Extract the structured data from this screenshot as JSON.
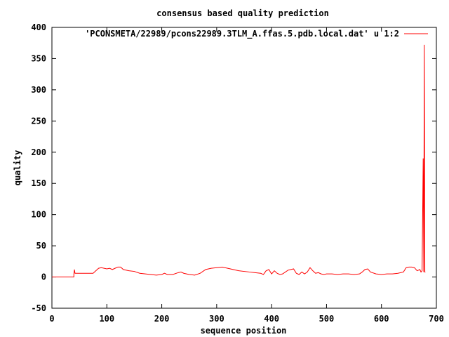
{
  "chart_data": {
    "type": "line",
    "title": "consensus based quality prediction",
    "xlabel": "sequence position",
    "ylabel": "quality",
    "xlim": [
      0,
      700
    ],
    "ylim": [
      -50,
      400
    ],
    "xticks": [
      0,
      100,
      200,
      300,
      400,
      500,
      600,
      700
    ],
    "yticks": [
      -50,
      0,
      50,
      100,
      150,
      200,
      250,
      300,
      350,
      400
    ],
    "grid": false,
    "legend_position": "top-right",
    "series": [
      {
        "name": "'PCONSMETA/22989/pcons22989.3TLM_A.ffas.5.pdb.local.dat' u 1:2",
        "color": "#ff0000",
        "x": [
          0,
          40,
          40,
          41,
          42,
          45,
          60,
          75,
          80,
          85,
          90,
          95,
          100,
          105,
          110,
          115,
          120,
          125,
          130,
          140,
          150,
          160,
          170,
          180,
          190,
          200,
          205,
          210,
          220,
          230,
          235,
          240,
          250,
          260,
          270,
          280,
          290,
          300,
          310,
          320,
          330,
          340,
          350,
          360,
          370,
          380,
          385,
          390,
          395,
          400,
          405,
          410,
          415,
          420,
          430,
          440,
          445,
          450,
          455,
          460,
          465,
          470,
          475,
          480,
          485,
          490,
          495,
          500,
          510,
          520,
          530,
          540,
          550,
          560,
          565,
          570,
          575,
          580,
          590,
          600,
          610,
          620,
          630,
          640,
          645,
          650,
          655,
          660,
          665,
          670,
          672,
          674,
          676,
          677,
          678,
          679,
          680
        ],
        "y": [
          0,
          0,
          5,
          12,
          6,
          6,
          6,
          6,
          10,
          14,
          15,
          14,
          13,
          14,
          12,
          14,
          16,
          16,
          12,
          10,
          9,
          6,
          5,
          4,
          3,
          4,
          6,
          4,
          4,
          7,
          8,
          6,
          4,
          3,
          6,
          12,
          14,
          15,
          16,
          14,
          12,
          10,
          9,
          8,
          7,
          6,
          4,
          10,
          12,
          5,
          10,
          6,
          4,
          5,
          11,
          13,
          6,
          4,
          8,
          5,
          8,
          15,
          10,
          6,
          7,
          5,
          4,
          5,
          5,
          4,
          5,
          5,
          4,
          5,
          8,
          12,
          13,
          8,
          5,
          4,
          5,
          5,
          6,
          8,
          15,
          16,
          16,
          15,
          10,
          12,
          8,
          10,
          190,
          8,
          372,
          8,
          8
        ]
      }
    ]
  }
}
